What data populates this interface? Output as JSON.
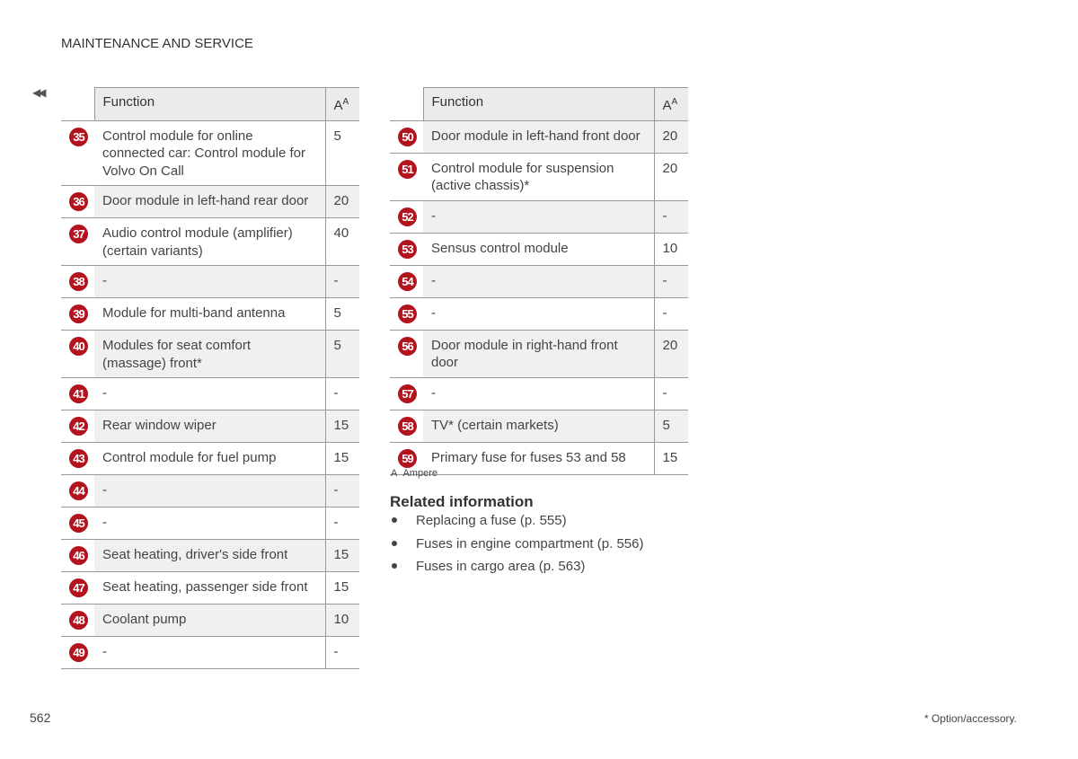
{
  "header": {
    "title": "MAINTENANCE AND SERVICE"
  },
  "tables": [
    {
      "columns": {
        "function": "Function",
        "unit": "A",
        "unit_note": "A"
      },
      "rows": [
        {
          "number": 35,
          "function": "Control module for online connected car: Control module for Volvo On Call",
          "amps": 5
        },
        {
          "number": 36,
          "function": "Door module in left-hand rear door",
          "amps": 20
        },
        {
          "number": 37,
          "function": "Audio control module (amplifier) (certain variants)",
          "amps": 40
        },
        {
          "number": 38,
          "function": "-",
          "amps": "-"
        },
        {
          "number": 39,
          "function": "Module for multi-band antenna",
          "amps": 5
        },
        {
          "number": 40,
          "function": "Modules for seat comfort (massage) front*",
          "amps": 5
        },
        {
          "number": 41,
          "function": "-",
          "amps": "-"
        },
        {
          "number": 42,
          "function": "Rear window wiper",
          "amps": 15
        },
        {
          "number": 43,
          "function": "Control module for fuel pump",
          "amps": 15
        },
        {
          "number": 44,
          "function": "-",
          "amps": "-"
        },
        {
          "number": 45,
          "function": "-",
          "amps": "-"
        },
        {
          "number": 46,
          "function": "Seat heating, driver's side front",
          "amps": 15
        },
        {
          "number": 47,
          "function": "Seat heating, passenger side front",
          "amps": 15
        },
        {
          "number": 48,
          "function": "Coolant pump",
          "amps": 10
        },
        {
          "number": 49,
          "function": "-",
          "amps": "-"
        }
      ]
    },
    {
      "columns": {
        "function": "Function",
        "unit": "A",
        "unit_note": "A"
      },
      "rows": [
        {
          "number": 50,
          "function": "Door module in left-hand front door",
          "amps": 20
        },
        {
          "number": 51,
          "function": "Control module for suspension (active chassis)*",
          "amps": 20
        },
        {
          "number": 52,
          "function": "-",
          "amps": "-"
        },
        {
          "number": 53,
          "function": "Sensus control module",
          "amps": 10
        },
        {
          "number": 54,
          "function": "-",
          "amps": "-"
        },
        {
          "number": 55,
          "function": "-",
          "amps": "-"
        },
        {
          "number": 56,
          "function": "Door module in right-hand front door",
          "amps": 20
        },
        {
          "number": 57,
          "function": "-",
          "amps": "-"
        },
        {
          "number": 58,
          "function": "TV* (certain markets)",
          "amps": 5
        },
        {
          "number": 59,
          "function": "Primary fuse for fuses 53 and 58",
          "amps": 15
        }
      ]
    }
  ],
  "footnote": {
    "mark": "A",
    "text": "Ampere"
  },
  "related": {
    "title": "Related information",
    "items": [
      "Replacing a fuse (p. 555)",
      "Fuses in engine compartment (p. 556)",
      "Fuses in cargo area (p. 563)"
    ]
  },
  "footer": {
    "page": "562",
    "note": "* Option/accessory."
  }
}
